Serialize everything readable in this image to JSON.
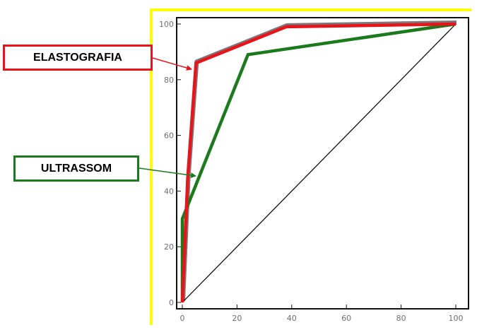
{
  "colors": {
    "frame_top": "#ffff00",
    "frame_left": "#ffff00",
    "elastografia": "#e8141b",
    "ultrassom": "#1a7a1c",
    "reference": "#000000",
    "gray_trace": "#7a7a7a"
  },
  "callouts": {
    "elastografia": "ELASTOGRAFIA",
    "ultrassom": "ULTRASSOM"
  },
  "chart_data": {
    "type": "line",
    "title": "",
    "xlabel": "",
    "ylabel": "",
    "xlim": [
      0,
      100
    ],
    "ylim": [
      0,
      100
    ],
    "x_ticks": [
      0,
      20,
      40,
      60,
      80,
      100
    ],
    "y_ticks": [
      0,
      20,
      40,
      60,
      80,
      100
    ],
    "grid": false,
    "series": [
      {
        "name": "ELASTOGRAFIA",
        "x": [
          0,
          2,
          5,
          38,
          100
        ],
        "y": [
          0,
          45,
          86,
          99,
          100
        ]
      },
      {
        "name": "ULTRASSOM",
        "x": [
          0,
          0,
          24,
          100
        ],
        "y": [
          0,
          30,
          89,
          100
        ]
      },
      {
        "name": "",
        "x": [
          0,
          100
        ],
        "y": [
          0,
          100
        ]
      }
    ]
  }
}
